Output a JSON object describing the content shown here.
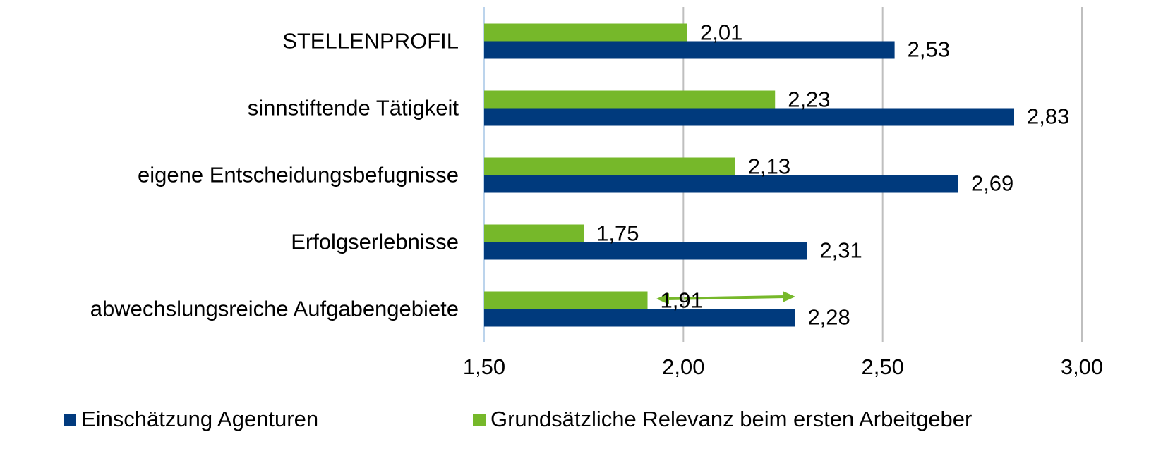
{
  "chart_data": {
    "type": "hbar",
    "categories": [
      "STELLENPROFIL",
      "sinnstiftende Tätigkeit",
      "eigene Entscheidungsbefugnisse",
      "Erfolgserlebnisse",
      "abwechslungsreiche Aufgabengebiete"
    ],
    "series": [
      {
        "name": "Einschätzung Agenturen",
        "color": "#003a7d",
        "values": [
          2.53,
          2.83,
          2.69,
          2.31,
          2.28
        ],
        "value_labels": [
          "2,53",
          "2,83",
          "2,69",
          "2,31",
          "2,28"
        ]
      },
      {
        "name": "Grundsätzliche Relevanz beim ersten Arbeitgeber",
        "color": "#76b82a",
        "values": [
          2.01,
          2.23,
          2.13,
          1.75,
          1.91
        ],
        "value_labels": [
          "2,01",
          "2,23",
          "2,13",
          "1,75",
          "1,91"
        ]
      }
    ],
    "xlim": [
      1.5,
      3.0
    ],
    "xticks": [
      {
        "value": 1.5,
        "label": "1,50"
      },
      {
        "value": 2.0,
        "label": "2,00"
      },
      {
        "value": 2.5,
        "label": "2,50"
      },
      {
        "value": 3.0,
        "label": "3,00"
      }
    ],
    "grid": true,
    "legend": "bottom"
  }
}
